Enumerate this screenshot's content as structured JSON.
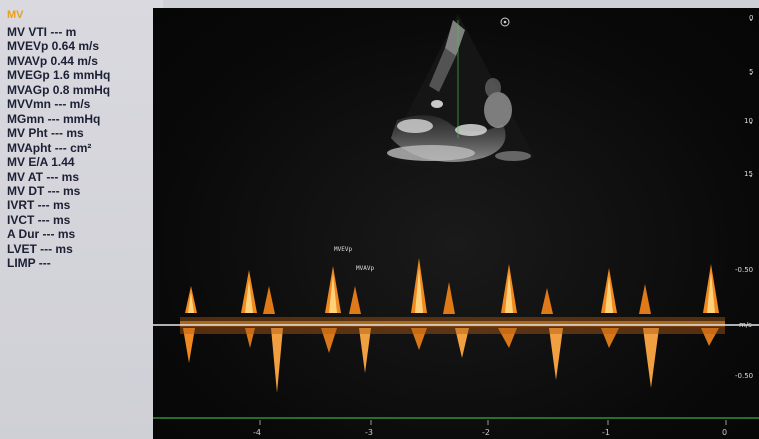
{
  "measurements": {
    "title": "MV",
    "items": [
      "MV VTI --- m",
      "MVEVp 0.64 m/s",
      "MVAVp 0.44 m/s",
      "MVEGp 1.6 mmHq",
      "MVAGp 0.8 mmHq",
      "MVVmn --- m/s",
      "MGmn --- mmHq",
      "MV Pht --- ms",
      "MVApht --- cm²",
      "MV E/A 1.44",
      "MV AT --- ms",
      "MV DT --- ms",
      "IVRT --- ms",
      "IVCT --- ms",
      "A Dur --- ms",
      "LVET --- ms",
      "LIMP ---"
    ]
  },
  "depth_scale": [
    "0",
    "5",
    "10",
    "15"
  ],
  "velocity_scale": [
    "-0.50",
    "m/s",
    "-0.50"
  ],
  "time_scale": [
    "-4",
    "-3",
    "-2",
    "-1",
    "0"
  ],
  "peak_labels": [
    "MVEVp",
    "MVAVp"
  ],
  "colors": {
    "doppler": "#f39a2a",
    "doppler_bright": "#ffd27a",
    "baseline": "#e8e8f0",
    "ecg": "#3ca83c"
  },
  "icons": [
    "circle-marker-icon"
  ]
}
